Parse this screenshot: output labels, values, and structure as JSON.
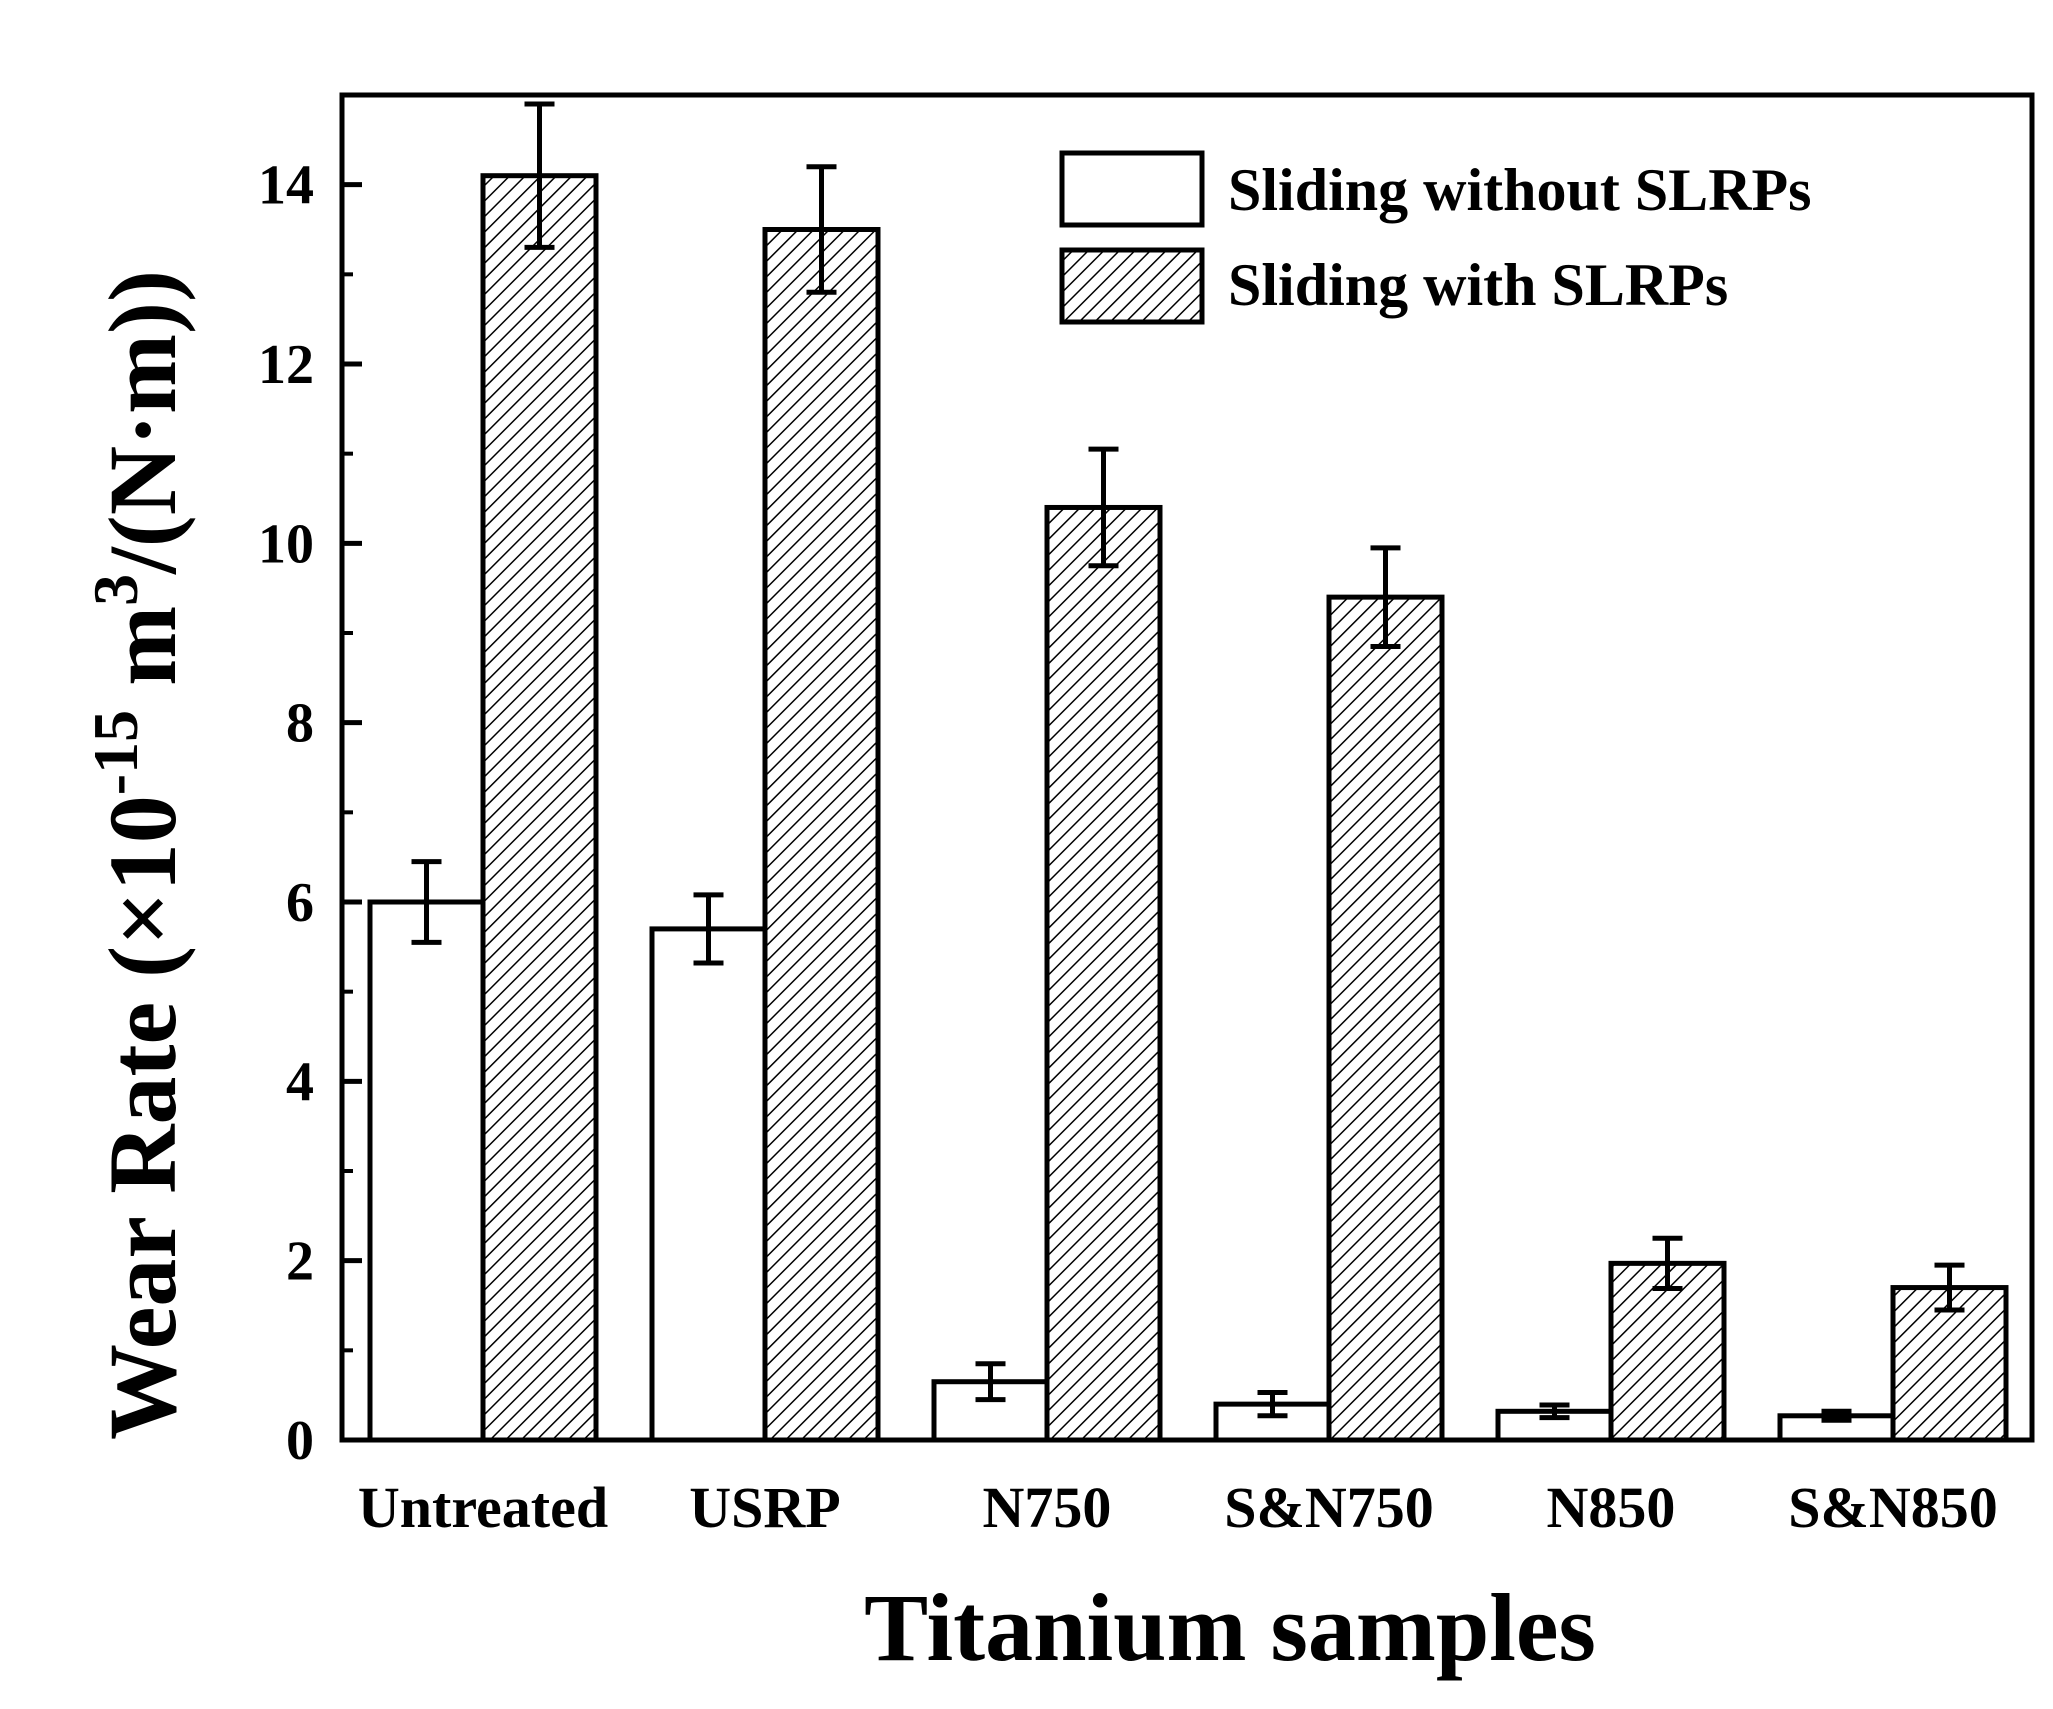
{
  "chart_data": {
    "type": "bar",
    "title": "",
    "xlabel": "Titanium samples",
    "ylabel": {
      "main": "Wear Rate (×10",
      "exp1": "-15",
      "mid": " m",
      "exp2": "3",
      "tail": "/(N·m))"
    },
    "ylim": [
      0,
      15
    ],
    "yticks": [
      0,
      2,
      4,
      6,
      8,
      10,
      12,
      14
    ],
    "categories": [
      "Untreated",
      "USRP",
      "N750",
      "S&N750",
      "N850",
      "S&N850"
    ],
    "series": [
      {
        "name": "Sliding without SLRPs",
        "fill": "white",
        "values": [
          6.0,
          5.7,
          0.65,
          0.4,
          0.32,
          0.27
        ],
        "errors": [
          0.45,
          0.38,
          0.2,
          0.13,
          0.07,
          0.05
        ]
      },
      {
        "name": "Sliding with SLRPs",
        "fill": "hatch",
        "values": [
          14.1,
          13.5,
          10.4,
          9.4,
          1.97,
          1.7
        ],
        "errors": [
          0.8,
          0.7,
          0.65,
          0.55,
          0.28,
          0.25
        ]
      }
    ],
    "legend_position": "top-right",
    "colors": {
      "axis": "#000000",
      "bar_stroke": "#000000",
      "plain_fill": "#ffffff",
      "hatch_line": "#000000"
    }
  }
}
